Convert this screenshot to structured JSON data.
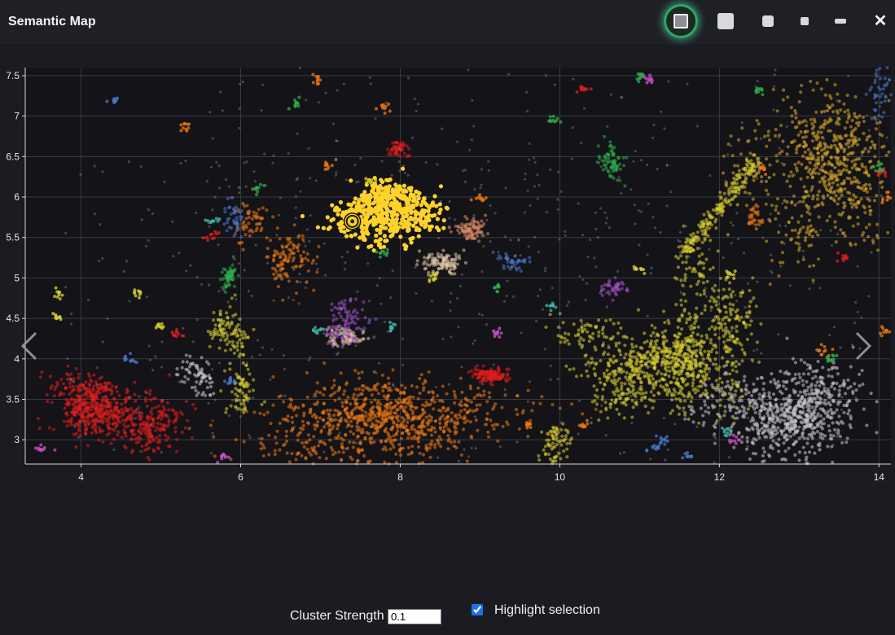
{
  "app": {
    "title": "Semantic Map"
  },
  "window_controls": {
    "fullscreen": "fullscreen-icon",
    "large": "square-large-icon",
    "medium": "square-medium-icon",
    "small": "square-small-icon",
    "minimize": "minimize-icon",
    "close_label": "✕"
  },
  "chart_data": {
    "type": "scatter",
    "title": "",
    "xlabel": "",
    "ylabel": "",
    "xlim": [
      3.3,
      14.15
    ],
    "ylim": [
      2.7,
      7.6
    ],
    "xticks": [
      4,
      6,
      8,
      10,
      12,
      14
    ],
    "yticks": [
      3,
      3.5,
      4,
      4.5,
      5,
      5.5,
      6,
      6.5,
      7,
      7.5
    ],
    "grid": true,
    "background": "#131318",
    "selected_point": {
      "x": 7.4,
      "y": 5.7,
      "color": "#ffd21f"
    },
    "clusters": [
      {
        "name": "",
        "color": "#ffd22a",
        "cx": 8.0,
        "cy": 5.8,
        "sx": 0.45,
        "sy": 0.25,
        "n": 520,
        "highlight": true,
        "shape": "yellow-main"
      },
      {
        "name": "",
        "color": "#ee7a12",
        "cx": 7.9,
        "cy": 3.25,
        "sx": 1.1,
        "sy": 0.3,
        "n": 900,
        "shape": "blob"
      },
      {
        "name": "",
        "color": "#ee7a12",
        "cx": 6.4,
        "cy": 5.4,
        "sx": 0.25,
        "sy": 0.35,
        "n": 160,
        "shape": "blob"
      },
      {
        "name": "",
        "color": "#e01e1e",
        "cx": 4.5,
        "cy": 3.35,
        "sx": 0.45,
        "sy": 0.3,
        "n": 650,
        "shape": "blob"
      },
      {
        "name": "",
        "color": "#e01e1e",
        "cx": 9.3,
        "cy": 3.8,
        "sx": 0.25,
        "sy": 0.08,
        "n": 130,
        "shape": "blob"
      },
      {
        "name": "",
        "color": "#e01e1e",
        "cx": 7.95,
        "cy": 6.65,
        "sx": 0.12,
        "sy": 0.07,
        "n": 50,
        "shape": "blob"
      },
      {
        "name": "",
        "color": "#d8d030",
        "cx": 11.65,
        "cy": 4.1,
        "sx": 0.35,
        "sy": 0.55,
        "n": 650,
        "shape": "blob"
      },
      {
        "name": "",
        "color": "#d8d030",
        "cx": 12.0,
        "cy": 5.9,
        "sx": 0.3,
        "sy": 0.35,
        "n": 220,
        "shape": "streak"
      },
      {
        "name": "",
        "color": "#d8d030",
        "cx": 10.7,
        "cy": 3.85,
        "sx": 0.5,
        "sy": 0.25,
        "n": 380,
        "shape": "blob"
      },
      {
        "name": "",
        "color": "#d8d030",
        "cx": 5.9,
        "cy": 4.0,
        "sx": 0.2,
        "sy": 0.3,
        "n": 170,
        "shape": "blob"
      },
      {
        "name": "",
        "color": "#d8d030",
        "cx": 9.8,
        "cy": 2.95,
        "sx": 0.2,
        "sy": 0.2,
        "n": 80,
        "shape": "blob"
      },
      {
        "name": "",
        "color": "#d8aa28",
        "cx": 13.1,
        "cy": 6.5,
        "sx": 0.45,
        "sy": 0.6,
        "n": 650,
        "shape": "blob"
      },
      {
        "name": "",
        "color": "#c8c8cf",
        "cx": 13.0,
        "cy": 3.35,
        "sx": 0.6,
        "sy": 0.45,
        "n": 750,
        "shape": "blob"
      },
      {
        "name": "",
        "color": "#c8c8cf",
        "cx": 5.4,
        "cy": 3.7,
        "sx": 0.15,
        "sy": 0.25,
        "n": 70,
        "shape": "blob"
      },
      {
        "name": "",
        "color": "#e3c8a8",
        "cx": 8.6,
        "cy": 5.1,
        "sx": 0.25,
        "sy": 0.12,
        "n": 110,
        "shape": "blob"
      },
      {
        "name": "",
        "color": "#e3c8a8",
        "cx": 7.4,
        "cy": 4.3,
        "sx": 0.25,
        "sy": 0.15,
        "n": 80,
        "shape": "blob"
      },
      {
        "name": "",
        "color": "#d98a6a",
        "cx": 8.85,
        "cy": 5.6,
        "sx": 0.2,
        "sy": 0.12,
        "n": 90,
        "shape": "blob"
      },
      {
        "name": "",
        "color": "#a050c8",
        "cx": 7.1,
        "cy": 4.45,
        "sx": 0.3,
        "sy": 0.15,
        "n": 90,
        "shape": "blob"
      },
      {
        "name": "",
        "color": "#a050c8",
        "cx": 10.7,
        "cy": 4.85,
        "sx": 0.15,
        "sy": 0.12,
        "n": 40,
        "shape": "blob"
      },
      {
        "name": "",
        "color": "#2fae4b",
        "cx": 10.7,
        "cy": 6.4,
        "sx": 0.15,
        "sy": 0.2,
        "n": 70,
        "shape": "blob"
      },
      {
        "name": "",
        "color": "#2fae4b",
        "cx": 5.85,
        "cy": 4.95,
        "sx": 0.08,
        "sy": 0.15,
        "n": 60,
        "shape": "blob"
      },
      {
        "name": "",
        "color": "#4a78c8",
        "cx": 9.3,
        "cy": 5.2,
        "sx": 0.15,
        "sy": 0.08,
        "n": 40,
        "shape": "blob"
      },
      {
        "name": "",
        "color": "#4a78c8",
        "cx": 5.95,
        "cy": 5.75,
        "sx": 0.08,
        "sy": 0.25,
        "n": 40,
        "shape": "blob"
      },
      {
        "name": "",
        "color": "#4a78c8",
        "cx": 14.0,
        "cy": 7.3,
        "sx": 0.1,
        "sy": 0.3,
        "n": 50,
        "shape": "blob"
      },
      {
        "name": "",
        "color": "#ee7a12",
        "cx": 12.45,
        "cy": 5.75,
        "sx": 0.1,
        "sy": 0.08,
        "n": 30,
        "shape": "blob"
      },
      {
        "name": "",
        "color": "#9aa0aa",
        "cx": 8.8,
        "cy": 4.4,
        "sx": 2.5,
        "sy": 1.2,
        "n": 500,
        "shape": "noise"
      },
      {
        "name": "",
        "color": "#9aa0aa",
        "cx": 10.5,
        "cy": 6.3,
        "sx": 2.5,
        "sy": 0.9,
        "n": 260,
        "shape": "noise"
      }
    ],
    "mini_clusters": [
      {
        "color": "#d8d030",
        "points": [
          [
            3.7,
            4.8
          ],
          [
            3.7,
            4.5
          ],
          [
            4.7,
            4.8
          ],
          [
            5.0,
            4.4
          ],
          [
            7.6,
            6.2
          ],
          [
            11.0,
            5.1
          ],
          [
            12.15,
            5.05
          ],
          [
            8.4,
            5.0
          ]
        ]
      },
      {
        "color": "#ee7a12",
        "points": [
          [
            6.95,
            7.45
          ],
          [
            7.8,
            7.1
          ],
          [
            9.0,
            6.0
          ],
          [
            9.6,
            3.2
          ],
          [
            10.3,
            3.2
          ],
          [
            12.55,
            6.35
          ],
          [
            13.3,
            4.1
          ],
          [
            14.05,
            4.35
          ],
          [
            14.1,
            6.0
          ],
          [
            5.3,
            6.85
          ],
          [
            7.1,
            6.4
          ]
        ]
      },
      {
        "color": "#e01e1e",
        "points": [
          [
            5.65,
            5.5
          ],
          [
            5.2,
            4.3
          ],
          [
            10.3,
            7.35
          ],
          [
            13.55,
            5.25
          ],
          [
            14.05,
            6.3
          ]
        ]
      },
      {
        "color": "#2fae4b",
        "points": [
          [
            6.2,
            6.1
          ],
          [
            7.8,
            5.3
          ],
          [
            9.2,
            4.9
          ],
          [
            6.7,
            7.15
          ],
          [
            9.9,
            6.95
          ],
          [
            11.0,
            7.5
          ],
          [
            12.5,
            7.3
          ],
          [
            13.4,
            4.0
          ],
          [
            14.0,
            6.35
          ]
        ]
      },
      {
        "color": "#3fb7a8",
        "points": [
          [
            5.65,
            5.7
          ],
          [
            6.95,
            4.35
          ],
          [
            7.9,
            4.4
          ],
          [
            9.9,
            4.65
          ],
          [
            12.1,
            3.1
          ]
        ]
      },
      {
        "color": "#c850c8",
        "points": [
          [
            9.2,
            4.3
          ],
          [
            11.1,
            7.45
          ],
          [
            12.2,
            3.0
          ],
          [
            3.5,
            2.9
          ],
          [
            5.8,
            2.8
          ]
        ]
      },
      {
        "color": "#4a78c8",
        "points": [
          [
            4.6,
            4.0
          ],
          [
            5.9,
            3.7
          ],
          [
            11.3,
            3.0
          ],
          [
            11.2,
            2.9
          ],
          [
            4.4,
            7.2
          ],
          [
            11.6,
            2.8
          ]
        ]
      }
    ]
  },
  "nav": {
    "prev_icon": "chevron-left-icon",
    "next_icon": "chevron-right-icon"
  },
  "controls": {
    "cluster_strength_label": "Cluster Strength",
    "cluster_strength_value": "0.1",
    "highlight_label": "Highlight selection",
    "highlight_checked": true
  }
}
